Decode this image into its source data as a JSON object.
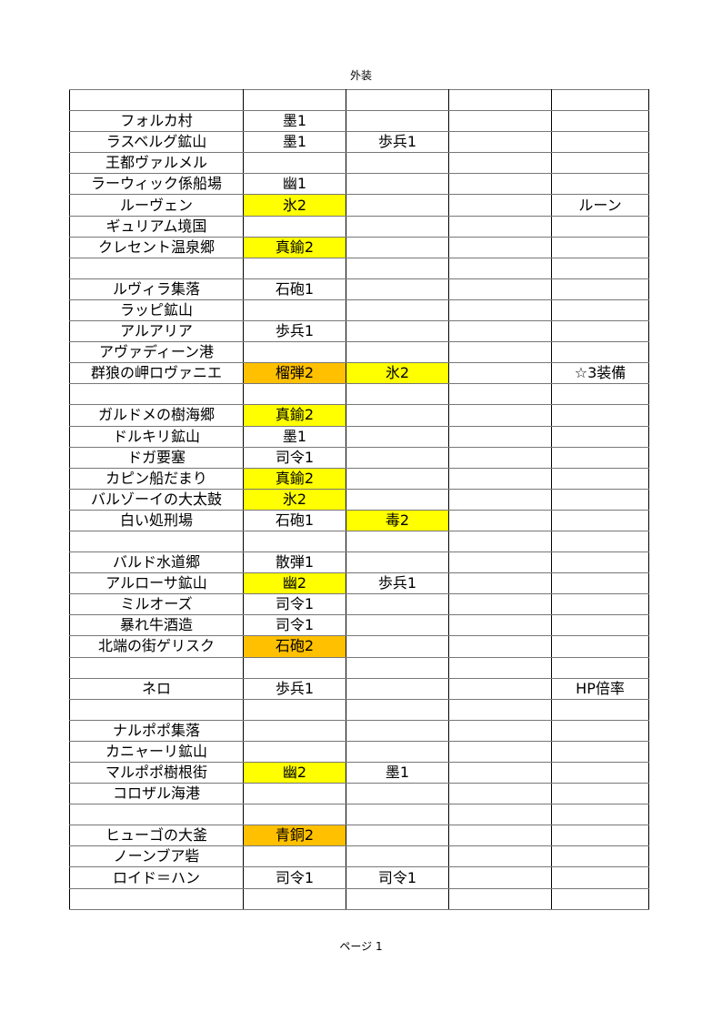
{
  "header": "外装",
  "footer": "ページ 1",
  "colors": {
    "yellow": "#ffff00",
    "orange": "#ffc000"
  },
  "rows": [
    [
      {
        "t": ""
      },
      {
        "t": ""
      },
      {
        "t": ""
      },
      {
        "t": ""
      },
      {
        "t": ""
      }
    ],
    [
      {
        "t": "フォルカ村"
      },
      {
        "t": "墨1"
      },
      {
        "t": ""
      },
      {
        "t": ""
      },
      {
        "t": ""
      }
    ],
    [
      {
        "t": "ラスベルグ鉱山"
      },
      {
        "t": "墨1"
      },
      {
        "t": "歩兵1"
      },
      {
        "t": ""
      },
      {
        "t": ""
      }
    ],
    [
      {
        "t": "王都ヴァルメル"
      },
      {
        "t": ""
      },
      {
        "t": ""
      },
      {
        "t": ""
      },
      {
        "t": ""
      }
    ],
    [
      {
        "t": "ラーウィック係船場"
      },
      {
        "t": "幽1"
      },
      {
        "t": ""
      },
      {
        "t": ""
      },
      {
        "t": ""
      }
    ],
    [
      {
        "t": "ルーヴェン"
      },
      {
        "t": "氷2",
        "fill": "yellow"
      },
      {
        "t": ""
      },
      {
        "t": ""
      },
      {
        "t": "ルーン"
      }
    ],
    [
      {
        "t": "ギュリアム境国"
      },
      {
        "t": ""
      },
      {
        "t": ""
      },
      {
        "t": ""
      },
      {
        "t": ""
      }
    ],
    [
      {
        "t": "クレセント温泉郷"
      },
      {
        "t": "真鍮2",
        "fill": "yellow"
      },
      {
        "t": ""
      },
      {
        "t": ""
      },
      {
        "t": ""
      }
    ],
    [
      {
        "t": ""
      },
      {
        "t": ""
      },
      {
        "t": ""
      },
      {
        "t": ""
      },
      {
        "t": ""
      }
    ],
    [
      {
        "t": "ルヴィラ集落"
      },
      {
        "t": "石砲1"
      },
      {
        "t": ""
      },
      {
        "t": ""
      },
      {
        "t": ""
      }
    ],
    [
      {
        "t": "ラッピ鉱山"
      },
      {
        "t": ""
      },
      {
        "t": ""
      },
      {
        "t": ""
      },
      {
        "t": ""
      }
    ],
    [
      {
        "t": "アルアリア"
      },
      {
        "t": "歩兵1"
      },
      {
        "t": ""
      },
      {
        "t": ""
      },
      {
        "t": ""
      }
    ],
    [
      {
        "t": "アヴァディーン港"
      },
      {
        "t": ""
      },
      {
        "t": ""
      },
      {
        "t": ""
      },
      {
        "t": ""
      }
    ],
    [
      {
        "t": "群狼の岬ロヴァニエ"
      },
      {
        "t": "榴弾2",
        "fill": "orange"
      },
      {
        "t": "氷2",
        "fill": "yellow"
      },
      {
        "t": ""
      },
      {
        "t": "☆3装備"
      }
    ],
    [
      {
        "t": ""
      },
      {
        "t": ""
      },
      {
        "t": ""
      },
      {
        "t": ""
      },
      {
        "t": ""
      }
    ],
    [
      {
        "t": "ガルドメの樹海郷"
      },
      {
        "t": "真鍮2",
        "fill": "yellow"
      },
      {
        "t": ""
      },
      {
        "t": ""
      },
      {
        "t": ""
      }
    ],
    [
      {
        "t": "ドルキリ鉱山"
      },
      {
        "t": "墨1"
      },
      {
        "t": ""
      },
      {
        "t": ""
      },
      {
        "t": ""
      }
    ],
    [
      {
        "t": "ドガ要塞"
      },
      {
        "t": "司令1"
      },
      {
        "t": ""
      },
      {
        "t": ""
      },
      {
        "t": ""
      }
    ],
    [
      {
        "t": "カピン船だまり"
      },
      {
        "t": "真鍮2",
        "fill": "yellow"
      },
      {
        "t": ""
      },
      {
        "t": ""
      },
      {
        "t": ""
      }
    ],
    [
      {
        "t": "バルゾーイの大太鼓"
      },
      {
        "t": "氷2",
        "fill": "yellow"
      },
      {
        "t": ""
      },
      {
        "t": ""
      },
      {
        "t": ""
      }
    ],
    [
      {
        "t": "白い処刑場"
      },
      {
        "t": "石砲1"
      },
      {
        "t": "毒2",
        "fill": "yellow"
      },
      {
        "t": ""
      },
      {
        "t": ""
      }
    ],
    [
      {
        "t": ""
      },
      {
        "t": ""
      },
      {
        "t": ""
      },
      {
        "t": ""
      },
      {
        "t": ""
      }
    ],
    [
      {
        "t": "バルド水道郷"
      },
      {
        "t": "散弾1"
      },
      {
        "t": ""
      },
      {
        "t": ""
      },
      {
        "t": ""
      }
    ],
    [
      {
        "t": "アルローサ鉱山"
      },
      {
        "t": "幽2",
        "fill": "yellow"
      },
      {
        "t": "歩兵1"
      },
      {
        "t": ""
      },
      {
        "t": ""
      }
    ],
    [
      {
        "t": "ミルオーズ"
      },
      {
        "t": "司令1"
      },
      {
        "t": ""
      },
      {
        "t": ""
      },
      {
        "t": ""
      }
    ],
    [
      {
        "t": "暴れ牛酒造"
      },
      {
        "t": "司令1"
      },
      {
        "t": ""
      },
      {
        "t": ""
      },
      {
        "t": ""
      }
    ],
    [
      {
        "t": "北端の街ゲリスク"
      },
      {
        "t": "石砲2",
        "fill": "orange"
      },
      {
        "t": ""
      },
      {
        "t": ""
      },
      {
        "t": ""
      }
    ],
    [
      {
        "t": ""
      },
      {
        "t": ""
      },
      {
        "t": ""
      },
      {
        "t": ""
      },
      {
        "t": ""
      }
    ],
    [
      {
        "t": "ネロ"
      },
      {
        "t": "歩兵1"
      },
      {
        "t": ""
      },
      {
        "t": ""
      },
      {
        "t": "HP倍率"
      }
    ],
    [
      {
        "t": ""
      },
      {
        "t": ""
      },
      {
        "t": ""
      },
      {
        "t": ""
      },
      {
        "t": ""
      }
    ],
    [
      {
        "t": "ナルポポ集落"
      },
      {
        "t": ""
      },
      {
        "t": ""
      },
      {
        "t": ""
      },
      {
        "t": ""
      }
    ],
    [
      {
        "t": "カニャーリ鉱山"
      },
      {
        "t": ""
      },
      {
        "t": ""
      },
      {
        "t": ""
      },
      {
        "t": ""
      }
    ],
    [
      {
        "t": "マルポポ樹根街"
      },
      {
        "t": "幽2",
        "fill": "yellow"
      },
      {
        "t": "墨1"
      },
      {
        "t": ""
      },
      {
        "t": ""
      }
    ],
    [
      {
        "t": "コロザル海港"
      },
      {
        "t": ""
      },
      {
        "t": ""
      },
      {
        "t": ""
      },
      {
        "t": ""
      }
    ],
    [
      {
        "t": ""
      },
      {
        "t": ""
      },
      {
        "t": ""
      },
      {
        "t": ""
      },
      {
        "t": ""
      }
    ],
    [
      {
        "t": "ヒューゴの大釜"
      },
      {
        "t": "青銅2",
        "fill": "orange"
      },
      {
        "t": ""
      },
      {
        "t": ""
      },
      {
        "t": ""
      }
    ],
    [
      {
        "t": "ノーンブア砦"
      },
      {
        "t": ""
      },
      {
        "t": ""
      },
      {
        "t": ""
      },
      {
        "t": ""
      }
    ],
    [
      {
        "t": "ロイド＝ハン"
      },
      {
        "t": "司令1"
      },
      {
        "t": "司令1"
      },
      {
        "t": ""
      },
      {
        "t": ""
      }
    ],
    [
      {
        "t": ""
      },
      {
        "t": ""
      },
      {
        "t": ""
      },
      {
        "t": ""
      },
      {
        "t": ""
      }
    ]
  ]
}
